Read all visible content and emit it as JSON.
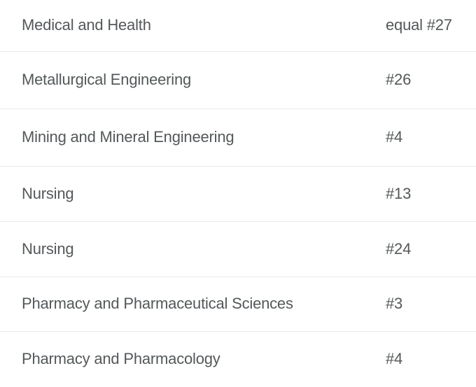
{
  "table": {
    "rows": [
      {
        "subject": "Medical and Health",
        "rank": "equal #27"
      },
      {
        "subject": "Metallurgical Engineering",
        "rank": "#26"
      },
      {
        "subject": "Mining and Mineral Engineering",
        "rank": "#4"
      },
      {
        "subject": "Nursing",
        "rank": "#13"
      },
      {
        "subject": "Nursing",
        "rank": "#24"
      },
      {
        "subject": "Pharmacy and Pharmaceutical Sciences",
        "rank": "#3"
      },
      {
        "subject": "Pharmacy and Pharmacology",
        "rank": "#4"
      }
    ]
  },
  "colors": {
    "text": "#54585a",
    "divider": "#e9e9e9",
    "background": "#ffffff"
  }
}
